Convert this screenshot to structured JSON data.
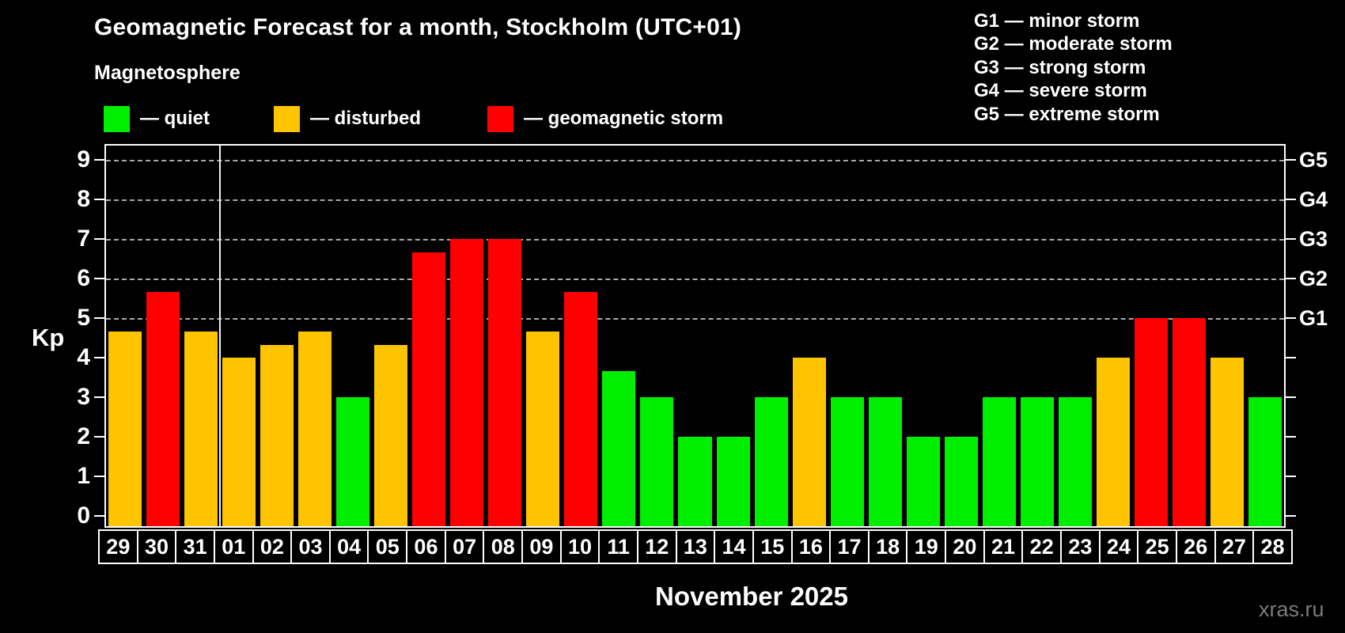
{
  "watermark": "xras.ru",
  "legend": {
    "items": [
      {
        "status": "quiet",
        "label": "— quiet"
      },
      {
        "status": "disturbed",
        "label": "— disturbed"
      },
      {
        "status": "storm",
        "label": "— geomagnetic storm"
      }
    ]
  },
  "g_scale_legend": [
    "G1 — minor storm",
    "G2 — moderate storm",
    "G3 — strong storm",
    "G4 — severe storm",
    "G5 — extreme storm"
  ],
  "chart_data": {
    "type": "bar",
    "title": "Geomagnetic Forecast for a month, Stockholm (UTC+01)",
    "subtitle": "Magnetosphere",
    "xlabel": "November 2025",
    "ylabel": "Kp",
    "ylim": [
      0,
      9.4
    ],
    "yticks": [
      0,
      1,
      2,
      3,
      4,
      5,
      6,
      7,
      8,
      9
    ],
    "gridlines_at": [
      5,
      6,
      7,
      8,
      9
    ],
    "grid": "dashed horizontal, Kp 5-9 only",
    "legend_position": "top-left row + storm-scale list top-right",
    "right_axis_labels": [
      {
        "kp": 5,
        "label": "G1"
      },
      {
        "kp": 6,
        "label": "G2"
      },
      {
        "kp": 7,
        "label": "G3"
      },
      {
        "kp": 8,
        "label": "G4"
      },
      {
        "kp": 9,
        "label": "G5"
      }
    ],
    "month_separator_after_index": 2,
    "status_colors": {
      "quiet": "#00ee00",
      "disturbed": "#ffc400",
      "storm": "#ff0000"
    },
    "categories": [
      "29",
      "30",
      "31",
      "01",
      "02",
      "03",
      "04",
      "05",
      "06",
      "07",
      "08",
      "09",
      "10",
      "11",
      "12",
      "13",
      "14",
      "15",
      "16",
      "17",
      "18",
      "19",
      "20",
      "21",
      "22",
      "23",
      "24",
      "25",
      "26",
      "27",
      "28"
    ],
    "values": [
      4.67,
      5.67,
      4.67,
      4,
      4.33,
      4.67,
      3,
      4.33,
      6.67,
      7,
      7,
      4.67,
      5.67,
      3.67,
      3,
      2,
      2,
      3,
      4,
      3,
      3,
      2,
      2,
      3,
      3,
      3,
      4,
      5,
      5,
      4,
      3
    ],
    "statuses": [
      "disturbed",
      "storm",
      "disturbed",
      "disturbed",
      "disturbed",
      "disturbed",
      "quiet",
      "disturbed",
      "storm",
      "storm",
      "storm",
      "disturbed",
      "storm",
      "quiet",
      "quiet",
      "quiet",
      "quiet",
      "quiet",
      "disturbed",
      "quiet",
      "quiet",
      "quiet",
      "quiet",
      "quiet",
      "quiet",
      "quiet",
      "disturbed",
      "storm",
      "storm",
      "disturbed",
      "quiet"
    ]
  }
}
